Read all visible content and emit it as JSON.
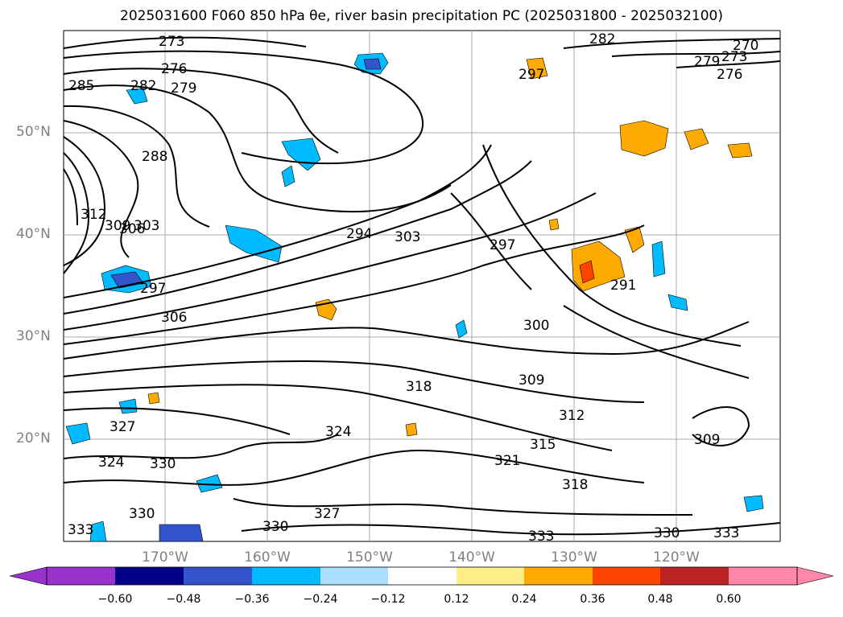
{
  "title": "2025031600 F060 850 hPa θe, river basin precipitation PC (2025031800 - 2025032100)",
  "map": {
    "lat_labels": [
      "50°N",
      "40°N",
      "30°N",
      "20°N"
    ],
    "lon_labels": [
      "170°W",
      "160°W",
      "150°W",
      "140°W",
      "130°W",
      "120°W"
    ],
    "contour_labels": [
      "273",
      "276",
      "279",
      "282",
      "285",
      "288",
      "312",
      "309",
      "306",
      "303",
      "297",
      "294",
      "303",
      "306",
      "297",
      "300",
      "309",
      "318",
      "312",
      "315",
      "321",
      "318",
      "324",
      "327",
      "324",
      "330",
      "330",
      "333",
      "327",
      "330",
      "333",
      "330",
      "333",
      "297",
      "282",
      "279",
      "276",
      "273",
      "270",
      "309",
      "291"
    ]
  },
  "colorbar": {
    "ticks": [
      "−0.60",
      "−0.48",
      "−0.36",
      "−0.24",
      "−0.12",
      "0.12",
      "0.24",
      "0.36",
      "0.48",
      "0.60"
    ],
    "colors": [
      "#9933cc",
      "#000088",
      "#3355cc",
      "#00bbff",
      "#aaddff",
      "#ffffff",
      "#ffee88",
      "#ffaa00",
      "#ff4400",
      "#bb2222",
      "#ff88aa"
    ]
  }
}
